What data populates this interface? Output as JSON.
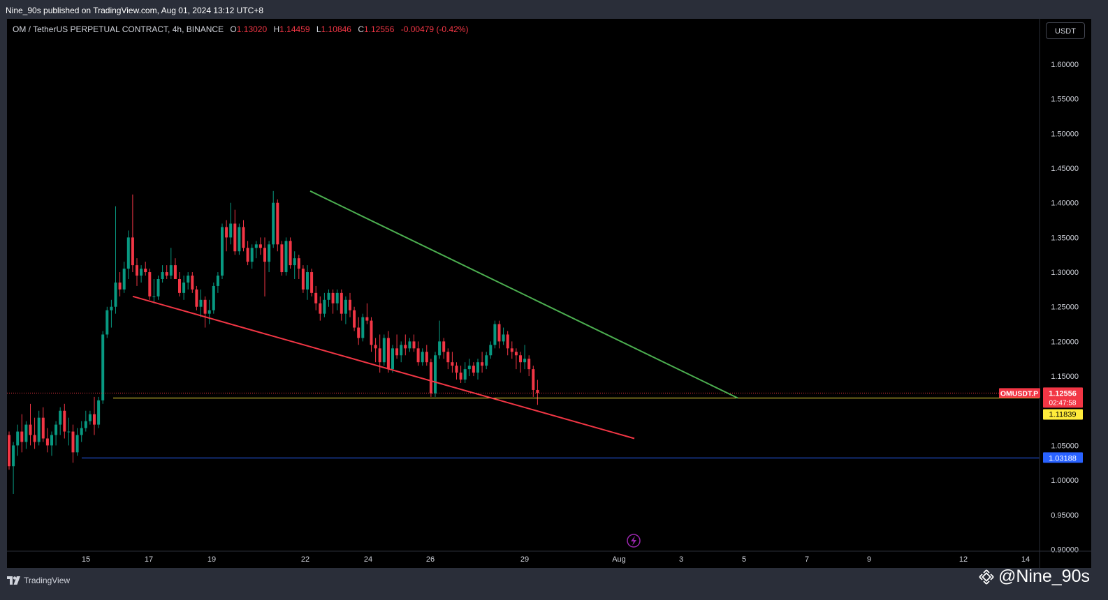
{
  "header": {
    "publish_info": "Nine_90s published on TradingView.com, Aug 01, 2024 13:12 UTC+8"
  },
  "legend": {
    "symbol": "OM / TetherUS PERPETUAL CONTRACT, 4h, BINANCE",
    "open_label": "O",
    "open": "1.13020",
    "high_label": "H",
    "high": "1.14459",
    "low_label": "L",
    "low": "1.10846",
    "close_label": "C",
    "close": "1.12556",
    "change": "-0.00479 (-0.42%)"
  },
  "currency_button": "USDT",
  "footer": {
    "logo_icon": "tradingview-logo-icon",
    "brand": "TradingView",
    "watermark_icon": "binance-diamond-icon",
    "watermark": "@Nine_90s"
  },
  "colors": {
    "up": "#089981",
    "down": "#f23645",
    "green_line": "#4caf50",
    "red_line": "#f23645",
    "yellow_line": "#ffeb3b",
    "blue_line": "#2962ff",
    "bolt": "#9c27b0"
  },
  "chart_data": {
    "type": "candlestick",
    "y_axis": {
      "ticks": [
        "1.60000",
        "1.55000",
        "1.50000",
        "1.45000",
        "1.40000",
        "1.35000",
        "1.30000",
        "1.25000",
        "1.20000",
        "1.15000",
        "1.05000",
        "1.00000",
        "0.95000",
        "0.90000"
      ],
      "range": [
        0.9,
        1.65
      ]
    },
    "x_axis": {
      "tick_labels": [
        "15",
        "17",
        "19",
        "22",
        "24",
        "26",
        "29",
        "Aug",
        "3",
        "5",
        "7",
        "9",
        "12",
        "14"
      ]
    },
    "price_labels": {
      "symbol_tag": "OMUSDT.P",
      "last_price": "1.12556",
      "countdown": "02:47:58",
      "yellow_level": "1.11839",
      "blue_level": "1.03188"
    },
    "levels": {
      "last": 1.12556,
      "yellow": 1.11839,
      "blue": 1.03188
    },
    "trendlines": [
      {
        "name": "upper",
        "color": "green",
        "from": [
          "Jul 22",
          1.417
        ],
        "to": [
          "Aug 4",
          1.12
        ]
      },
      {
        "name": "lower",
        "color": "red",
        "from": [
          "Jul 16",
          1.265
        ],
        "to": [
          "Aug 1",
          1.06
        ]
      }
    ],
    "candles_ohlc": [
      [
        1.065,
        1.07,
        1.015,
        1.02
      ],
      [
        1.02,
        1.055,
        0.98,
        1.05
      ],
      [
        1.05,
        1.08,
        1.035,
        1.07
      ],
      [
        1.07,
        1.095,
        1.04,
        1.055
      ],
      [
        1.055,
        1.085,
        1.045,
        1.08
      ],
      [
        1.08,
        1.11,
        1.05,
        1.065
      ],
      [
        1.065,
        1.09,
        1.045,
        1.055
      ],
      [
        1.055,
        1.1,
        1.05,
        1.09
      ],
      [
        1.09,
        1.105,
        1.055,
        1.06
      ],
      [
        1.06,
        1.075,
        1.04,
        1.05
      ],
      [
        1.05,
        1.07,
        1.035,
        1.065
      ],
      [
        1.065,
        1.085,
        1.05,
        1.08
      ],
      [
        1.08,
        1.105,
        1.065,
        1.1
      ],
      [
        1.1,
        1.11,
        1.06,
        1.07
      ],
      [
        1.07,
        1.09,
        1.05,
        1.07
      ],
      [
        1.07,
        1.08,
        1.025,
        1.04
      ],
      [
        1.04,
        1.075,
        1.035,
        1.065
      ],
      [
        1.065,
        1.085,
        1.055,
        1.075
      ],
      [
        1.075,
        1.1,
        1.07,
        1.085
      ],
      [
        1.085,
        1.1,
        1.08,
        1.095
      ],
      [
        1.095,
        1.12,
        1.065,
        1.08
      ],
      [
        1.08,
        1.12,
        1.075,
        1.115
      ],
      [
        1.115,
        1.215,
        1.11,
        1.21
      ],
      [
        1.21,
        1.25,
        1.205,
        1.245
      ],
      [
        1.245,
        1.26,
        1.22,
        1.25
      ],
      [
        1.25,
        1.395,
        1.24,
        1.285
      ],
      [
        1.285,
        1.3,
        1.265,
        1.275
      ],
      [
        1.275,
        1.315,
        1.27,
        1.305
      ],
      [
        1.305,
        1.36,
        1.29,
        1.35
      ],
      [
        1.35,
        1.412,
        1.3,
        1.31
      ],
      [
        1.31,
        1.32,
        1.28,
        1.295
      ],
      [
        1.295,
        1.31,
        1.285,
        1.305
      ],
      [
        1.305,
        1.315,
        1.295,
        1.3
      ],
      [
        1.3,
        1.305,
        1.26,
        1.265
      ],
      [
        1.265,
        1.29,
        1.255,
        1.265
      ],
      [
        1.265,
        1.295,
        1.26,
        1.29
      ],
      [
        1.29,
        1.31,
        1.285,
        1.3
      ],
      [
        1.3,
        1.31,
        1.29,
        1.295
      ],
      [
        1.295,
        1.335,
        1.29,
        1.31
      ],
      [
        1.31,
        1.32,
        1.29,
        1.29
      ],
      [
        1.29,
        1.3,
        1.265,
        1.27
      ],
      [
        1.27,
        1.295,
        1.26,
        1.285
      ],
      [
        1.285,
        1.3,
        1.275,
        1.295
      ],
      [
        1.295,
        1.3,
        1.27,
        1.275
      ],
      [
        1.275,
        1.28,
        1.245,
        1.25
      ],
      [
        1.25,
        1.275,
        1.235,
        1.26
      ],
      [
        1.26,
        1.265,
        1.22,
        1.24
      ],
      [
        1.24,
        1.26,
        1.225,
        1.245
      ],
      [
        1.245,
        1.285,
        1.24,
        1.28
      ],
      [
        1.28,
        1.3,
        1.27,
        1.295
      ],
      [
        1.295,
        1.37,
        1.29,
        1.365
      ],
      [
        1.365,
        1.375,
        1.33,
        1.35
      ],
      [
        1.35,
        1.4,
        1.34,
        1.37
      ],
      [
        1.37,
        1.39,
        1.325,
        1.33
      ],
      [
        1.33,
        1.37,
        1.325,
        1.365
      ],
      [
        1.365,
        1.375,
        1.33,
        1.335
      ],
      [
        1.335,
        1.345,
        1.31,
        1.315
      ],
      [
        1.315,
        1.34,
        1.305,
        1.335
      ],
      [
        1.335,
        1.345,
        1.32,
        1.34
      ],
      [
        1.34,
        1.35,
        1.325,
        1.335
      ],
      [
        1.335,
        1.35,
        1.265,
        1.315
      ],
      [
        1.315,
        1.345,
        1.3,
        1.34
      ],
      [
        1.34,
        1.417,
        1.335,
        1.4
      ],
      [
        1.4,
        1.405,
        1.33,
        1.34
      ],
      [
        1.34,
        1.345,
        1.295,
        1.3
      ],
      [
        1.3,
        1.35,
        1.295,
        1.345
      ],
      [
        1.345,
        1.35,
        1.305,
        1.31
      ],
      [
        1.31,
        1.33,
        1.29,
        1.32
      ],
      [
        1.32,
        1.325,
        1.29,
        1.305
      ],
      [
        1.305,
        1.31,
        1.27,
        1.275
      ],
      [
        1.275,
        1.31,
        1.26,
        1.3
      ],
      [
        1.3,
        1.305,
        1.265,
        1.27
      ],
      [
        1.27,
        1.28,
        1.245,
        1.255
      ],
      [
        1.255,
        1.265,
        1.23,
        1.24
      ],
      [
        1.24,
        1.27,
        1.235,
        1.26
      ],
      [
        1.26,
        1.275,
        1.25,
        1.27
      ],
      [
        1.27,
        1.275,
        1.24,
        1.255
      ],
      [
        1.255,
        1.275,
        1.245,
        1.27
      ],
      [
        1.27,
        1.275,
        1.23,
        1.24
      ],
      [
        1.24,
        1.265,
        1.225,
        1.26
      ],
      [
        1.26,
        1.27,
        1.235,
        1.245
      ],
      [
        1.245,
        1.25,
        1.215,
        1.22
      ],
      [
        1.22,
        1.235,
        1.195,
        1.205
      ],
      [
        1.205,
        1.24,
        1.2,
        1.235
      ],
      [
        1.235,
        1.255,
        1.225,
        1.23
      ],
      [
        1.23,
        1.235,
        1.185,
        1.195
      ],
      [
        1.195,
        1.205,
        1.17,
        1.19
      ],
      [
        1.19,
        1.21,
        1.155,
        1.17
      ],
      [
        1.17,
        1.21,
        1.165,
        1.205
      ],
      [
        1.205,
        1.215,
        1.155,
        1.16
      ],
      [
        1.16,
        1.195,
        1.155,
        1.19
      ],
      [
        1.19,
        1.21,
        1.175,
        1.18
      ],
      [
        1.18,
        1.2,
        1.17,
        1.195
      ],
      [
        1.195,
        1.21,
        1.18,
        1.19
      ],
      [
        1.19,
        1.205,
        1.185,
        1.2
      ],
      [
        1.2,
        1.21,
        1.185,
        1.19
      ],
      [
        1.19,
        1.2,
        1.165,
        1.17
      ],
      [
        1.17,
        1.19,
        1.165,
        1.185
      ],
      [
        1.185,
        1.195,
        1.165,
        1.17
      ],
      [
        1.17,
        1.175,
        1.12,
        1.125
      ],
      [
        1.125,
        1.185,
        1.12,
        1.18
      ],
      [
        1.18,
        1.23,
        1.175,
        1.2
      ],
      [
        1.2,
        1.205,
        1.175,
        1.185
      ],
      [
        1.185,
        1.19,
        1.16,
        1.17
      ],
      [
        1.17,
        1.185,
        1.155,
        1.165
      ],
      [
        1.165,
        1.17,
        1.145,
        1.155
      ],
      [
        1.155,
        1.165,
        1.14,
        1.145
      ],
      [
        1.145,
        1.17,
        1.14,
        1.16
      ],
      [
        1.16,
        1.175,
        1.15,
        1.165
      ],
      [
        1.165,
        1.17,
        1.15,
        1.155
      ],
      [
        1.155,
        1.175,
        1.145,
        1.17
      ],
      [
        1.17,
        1.185,
        1.155,
        1.165
      ],
      [
        1.165,
        1.185,
        1.16,
        1.18
      ],
      [
        1.18,
        1.2,
        1.175,
        1.195
      ],
      [
        1.195,
        1.23,
        1.19,
        1.225
      ],
      [
        1.225,
        1.23,
        1.19,
        1.2
      ],
      [
        1.2,
        1.22,
        1.195,
        1.21
      ],
      [
        1.21,
        1.215,
        1.18,
        1.19
      ],
      [
        1.19,
        1.2,
        1.175,
        1.185
      ],
      [
        1.185,
        1.19,
        1.16,
        1.18
      ],
      [
        1.18,
        1.185,
        1.155,
        1.17
      ],
      [
        1.17,
        1.195,
        1.16,
        1.175
      ],
      [
        1.175,
        1.18,
        1.15,
        1.16
      ],
      [
        1.16,
        1.165,
        1.12,
        1.13
      ],
      [
        1.13,
        1.1446,
        1.1085,
        1.12556
      ]
    ]
  }
}
